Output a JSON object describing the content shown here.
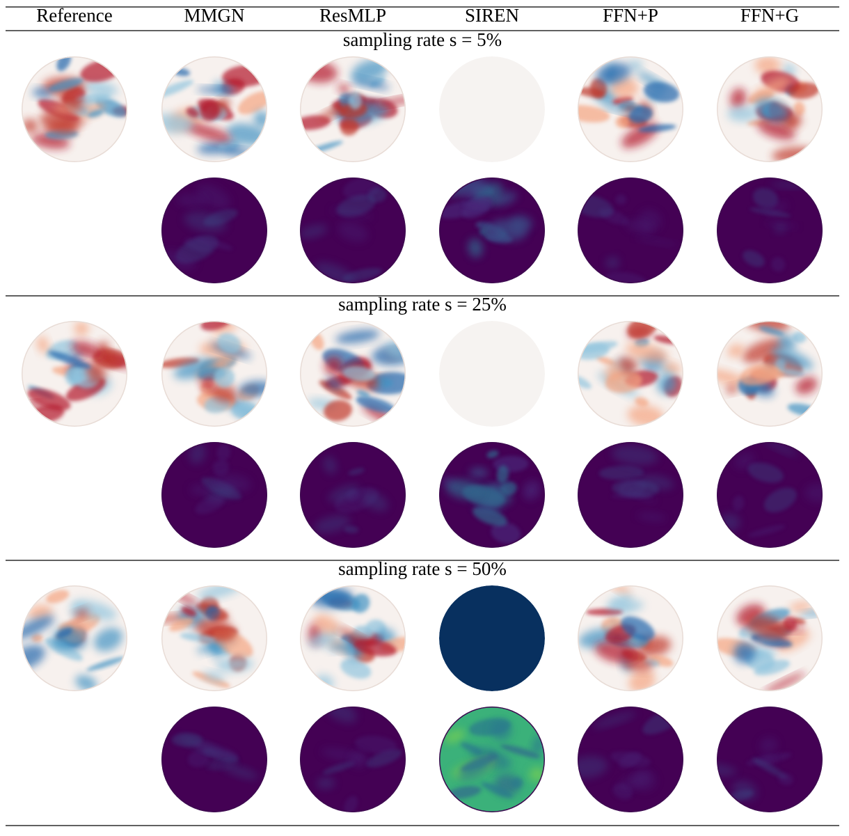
{
  "header": {
    "columns": [
      "Reference",
      "MMGN",
      "ResMLP",
      "SIREN",
      "FFN+P",
      "FFN+G"
    ]
  },
  "sections": [
    {
      "label": "sampling rate s = 5%"
    },
    {
      "label": "sampling rate s = 25%"
    },
    {
      "label": "sampling rate s = 50%"
    }
  ]
}
